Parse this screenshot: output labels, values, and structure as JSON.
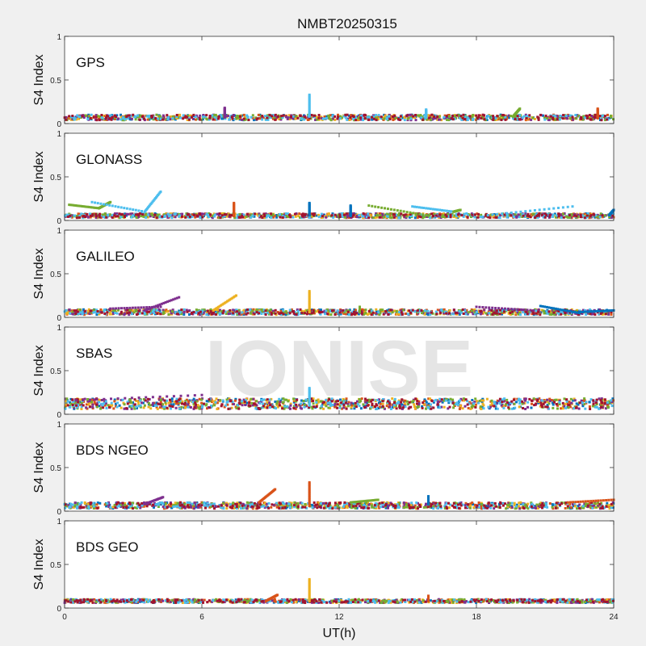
{
  "chart_data": {
    "type": "scatter",
    "title": "NMBT20250315",
    "xlabel": "UT(h)",
    "ylabel": "S4 Index",
    "xlim": [
      0,
      24
    ],
    "ylim": [
      0,
      1
    ],
    "x_ticks": [
      "0",
      "6",
      "12",
      "18",
      "24"
    ],
    "y_ticks": [
      "0",
      "0.5",
      "1"
    ],
    "watermark": "IONISE",
    "series_colors": [
      "#0072BD",
      "#D95319",
      "#EDB120",
      "#7E2F8E",
      "#77AC30",
      "#4DBEEE",
      "#A2142F"
    ],
    "panels": [
      {
        "name": "GPS",
        "base_range": [
          0.04,
          0.1
        ],
        "features": [
          {
            "x": [
              10.7,
              10.7
            ],
            "y": [
              0.08,
              0.33
            ],
            "color": "#4DBEEE"
          },
          {
            "x": [
              7.0,
              7.0
            ],
            "y": [
              0.07,
              0.18
            ],
            "color": "#7E2F8E"
          },
          {
            "x": [
              15.8,
              15.8
            ],
            "y": [
              0.07,
              0.16
            ],
            "color": "#4DBEEE"
          },
          {
            "x": [
              19.6,
              19.9
            ],
            "y": [
              0.08,
              0.17
            ],
            "color": "#77AC30"
          },
          {
            "x": [
              23.3,
              23.3
            ],
            "y": [
              0.06,
              0.17
            ],
            "color": "#D95319"
          }
        ]
      },
      {
        "name": "GLONASS",
        "base_range": [
          0.03,
          0.08
        ],
        "features": [
          {
            "x": [
              0.2,
              1.5
            ],
            "y": [
              0.18,
              0.14
            ],
            "color": "#77AC30"
          },
          {
            "x": [
              1.5,
              2.0
            ],
            "y": [
              0.14,
              0.21
            ],
            "color": "#77AC30"
          },
          {
            "x": [
              1.2,
              3.5
            ],
            "y": [
              0.21,
              0.1
            ],
            "color": "#4DBEEE"
          },
          {
            "x": [
              3.5,
              4.2
            ],
            "y": [
              0.1,
              0.33
            ],
            "color": "#4DBEEE"
          },
          {
            "x": [
              7.4,
              7.4
            ],
            "y": [
              0.05,
              0.2
            ],
            "color": "#D95319"
          },
          {
            "x": [
              10.7,
              10.7
            ],
            "y": [
              0.06,
              0.2
            ],
            "color": "#0072BD"
          },
          {
            "x": [
              12.5,
              12.5
            ],
            "y": [
              0.05,
              0.17
            ],
            "color": "#0072BD"
          },
          {
            "x": [
              13.3,
              15.8
            ],
            "y": [
              0.17,
              0.06
            ],
            "color": "#77AC30"
          },
          {
            "x": [
              15.2,
              17.0
            ],
            "y": [
              0.16,
              0.1
            ],
            "color": "#4DBEEE"
          },
          {
            "x": [
              17.0,
              17.3
            ],
            "y": [
              0.1,
              0.12
            ],
            "color": "#77AC30"
          },
          {
            "x": [
              18.5,
              22.2
            ],
            "y": [
              0.06,
              0.16
            ],
            "color": "#4DBEEE"
          },
          {
            "x": [
              23.8,
              24.0
            ],
            "y": [
              0.06,
              0.12
            ],
            "color": "#0072BD"
          }
        ]
      },
      {
        "name": "GALILEO",
        "base_range": [
          0.03,
          0.09
        ],
        "features": [
          {
            "x": [
              2.0,
              4.2
            ],
            "y": [
              0.1,
              0.12
            ],
            "color": "#7E2F8E"
          },
          {
            "x": [
              3.5,
              5.0
            ],
            "y": [
              0.08,
              0.23
            ],
            "color": "#7E2F8E"
          },
          {
            "x": [
              6.5,
              7.5
            ],
            "y": [
              0.08,
              0.25
            ],
            "color": "#EDB120"
          },
          {
            "x": [
              10.7,
              10.7
            ],
            "y": [
              0.06,
              0.3
            ],
            "color": "#EDB120"
          },
          {
            "x": [
              12.9,
              12.9
            ],
            "y": [
              0.06,
              0.12
            ],
            "color": "#77AC30"
          },
          {
            "x": [
              18.0,
              20.5
            ],
            "y": [
              0.12,
              0.08
            ],
            "color": "#7E2F8E"
          },
          {
            "x": [
              20.8,
              22.5
            ],
            "y": [
              0.13,
              0.05
            ],
            "color": "#0072BD"
          },
          {
            "x": [
              22.5,
              24.0
            ],
            "y": [
              0.06,
              0.08
            ],
            "color": "#0072BD"
          }
        ]
      },
      {
        "name": "SBAS",
        "base_range": [
          0.06,
          0.18
        ],
        "features": [
          {
            "x": [
              0.5,
              6.0
            ],
            "y": [
              0.16,
              0.22
            ],
            "color": "#7E2F8E"
          },
          {
            "x": [
              10.7,
              10.7
            ],
            "y": [
              0.1,
              0.3
            ],
            "color": "#4DBEEE"
          }
        ]
      },
      {
        "name": "BDS NGEO",
        "base_range": [
          0.03,
          0.1
        ],
        "features": [
          {
            "x": [
              3.5,
              4.3
            ],
            "y": [
              0.08,
              0.16
            ],
            "color": "#7E2F8E"
          },
          {
            "x": [
              8.5,
              9.2
            ],
            "y": [
              0.1,
              0.25
            ],
            "color": "#D95319"
          },
          {
            "x": [
              10.7,
              10.7
            ],
            "y": [
              0.06,
              0.33
            ],
            "color": "#D95319"
          },
          {
            "x": [
              12.5,
              13.7
            ],
            "y": [
              0.1,
              0.13
            ],
            "color": "#77AC30"
          },
          {
            "x": [
              15.9,
              15.9
            ],
            "y": [
              0.08,
              0.17
            ],
            "color": "#0072BD"
          },
          {
            "x": [
              22.0,
              24.0
            ],
            "y": [
              0.1,
              0.13
            ],
            "color": "#D95319"
          }
        ]
      },
      {
        "name": "BDS GEO",
        "base_range": [
          0.06,
          0.1
        ],
        "features": [
          {
            "x": [
              8.8,
              9.3
            ],
            "y": [
              0.08,
              0.15
            ],
            "color": "#D95319"
          },
          {
            "x": [
              10.7,
              10.7
            ],
            "y": [
              0.08,
              0.33
            ],
            "color": "#EDB120"
          },
          {
            "x": [
              15.9,
              15.9
            ],
            "y": [
              0.08,
              0.14
            ],
            "color": "#D95319"
          }
        ]
      }
    ]
  }
}
